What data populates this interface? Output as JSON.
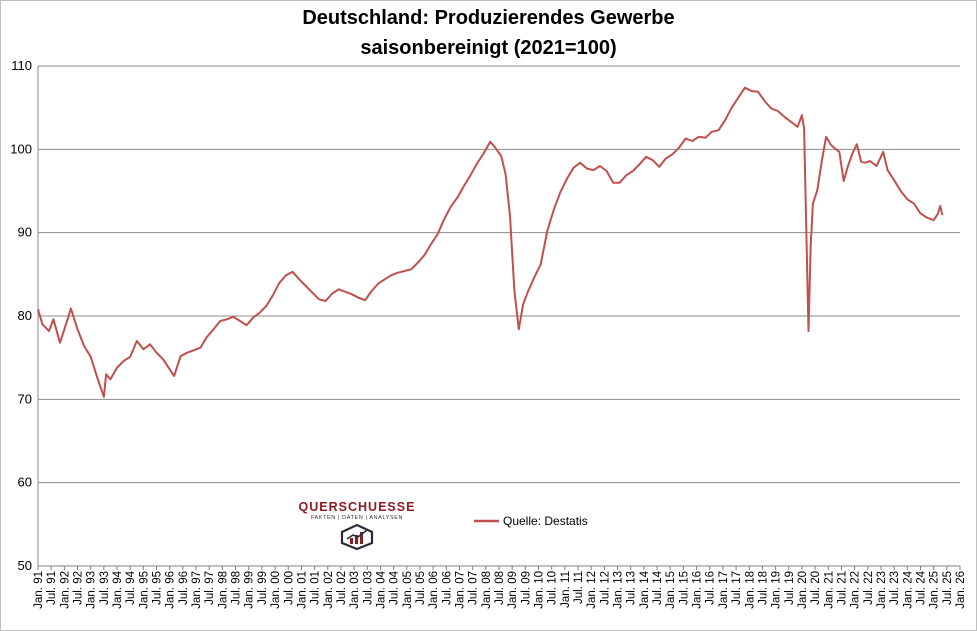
{
  "chart_data": {
    "type": "line",
    "title": "Deutschland: Produzierendes Gewerbe",
    "subtitle": "saisonbereinigt (2021=100)",
    "xlabel": "",
    "ylabel": "",
    "ylim": [
      50,
      110
    ],
    "yticks": [
      50,
      60,
      70,
      80,
      90,
      100,
      110
    ],
    "grid": true,
    "legend_position": "bottom-center",
    "x_tick_labels": [
      "Jan. 91",
      "Jul. 91",
      "Jan. 92",
      "Jul. 92",
      "Jan. 93",
      "Jul. 93",
      "Jan. 94",
      "Jul. 94",
      "Jan. 95",
      "Jul. 95",
      "Jan. 96",
      "Jul. 96",
      "Jan. 97",
      "Jul. 97",
      "Jan. 98",
      "Jul. 98",
      "Jan. 99",
      "Jul. 99",
      "Jan. 00",
      "Jul. 00",
      "Jan. 01",
      "Jul. 01",
      "Jan. 02",
      "Jul. 02",
      "Jan. 03",
      "Jul. 03",
      "Jan. 04",
      "Jul. 04",
      "Jan. 05",
      "Jul. 05",
      "Jan. 06",
      "Jul. 06",
      "Jan. 07",
      "Jul. 07",
      "Jan. 08",
      "Jul. 08",
      "Jan. 09",
      "Jul. 09",
      "Jan. 10",
      "Jul. 10",
      "Jan. 11",
      "Jul. 11",
      "Jan. 12",
      "Jul. 12",
      "Jan. 13",
      "Jul. 13",
      "Jan. 14",
      "Jul. 14",
      "Jan. 15",
      "Jul. 15",
      "Jan. 16",
      "Jul. 16",
      "Jan. 17",
      "Jul. 17",
      "Jan. 18",
      "Jul. 18",
      "Jan. 19",
      "Jul. 19",
      "Jan. 20",
      "Jul. 20",
      "Jan. 21",
      "Jul. 21",
      "Jan. 22",
      "Jul. 22",
      "Jan. 23",
      "Jul. 23",
      "Jan. 24",
      "Jul. 24",
      "Jan. 25",
      "Jul. 25",
      "Jan. 26"
    ],
    "series": [
      {
        "name": "Quelle: Destatis",
        "color": "#c0504d",
        "points": [
          [
            "1991-01",
            80.8
          ],
          [
            "1991-03",
            79.0
          ],
          [
            "1991-06",
            78.2
          ],
          [
            "1991-08",
            79.6
          ],
          [
            "1991-11",
            76.8
          ],
          [
            "1992-02",
            79.2
          ],
          [
            "1992-04",
            80.9
          ],
          [
            "1992-07",
            78.4
          ],
          [
            "1992-10",
            76.4
          ],
          [
            "1993-01",
            75.1
          ],
          [
            "1993-04",
            72.6
          ],
          [
            "1993-07",
            70.3
          ],
          [
            "1993-08",
            73.0
          ],
          [
            "1993-10",
            72.4
          ],
          [
            "1994-01",
            73.8
          ],
          [
            "1994-04",
            74.6
          ],
          [
            "1994-07",
            75.1
          ],
          [
            "1994-10",
            77.0
          ],
          [
            "1995-01",
            76.0
          ],
          [
            "1995-04",
            76.6
          ],
          [
            "1995-07",
            75.6
          ],
          [
            "1995-10",
            74.8
          ],
          [
            "1996-01",
            73.6
          ],
          [
            "1996-03",
            72.8
          ],
          [
            "1996-06",
            75.2
          ],
          [
            "1996-09",
            75.6
          ],
          [
            "1996-12",
            75.9
          ],
          [
            "1997-03",
            76.2
          ],
          [
            "1997-06",
            77.5
          ],
          [
            "1997-09",
            78.4
          ],
          [
            "1997-12",
            79.4
          ],
          [
            "1998-03",
            79.6
          ],
          [
            "1998-06",
            79.9
          ],
          [
            "1998-09",
            79.4
          ],
          [
            "1998-12",
            78.9
          ],
          [
            "1999-03",
            79.8
          ],
          [
            "1999-06",
            80.4
          ],
          [
            "1999-09",
            81.2
          ],
          [
            "1999-12",
            82.5
          ],
          [
            "2000-03",
            84.0
          ],
          [
            "2000-06",
            84.9
          ],
          [
            "2000-09",
            85.3
          ],
          [
            "2000-12",
            84.4
          ],
          [
            "2001-03",
            83.6
          ],
          [
            "2001-06",
            82.8
          ],
          [
            "2001-09",
            82.0
          ],
          [
            "2001-12",
            81.8
          ],
          [
            "2002-03",
            82.7
          ],
          [
            "2002-06",
            83.2
          ],
          [
            "2002-09",
            82.9
          ],
          [
            "2002-12",
            82.6
          ],
          [
            "2003-03",
            82.2
          ],
          [
            "2003-06",
            81.9
          ],
          [
            "2003-09",
            83.0
          ],
          [
            "2003-12",
            83.9
          ],
          [
            "2004-03",
            84.4
          ],
          [
            "2004-06",
            84.9
          ],
          [
            "2004-09",
            85.2
          ],
          [
            "2004-12",
            85.4
          ],
          [
            "2005-03",
            85.6
          ],
          [
            "2005-06",
            86.4
          ],
          [
            "2005-09",
            87.3
          ],
          [
            "2005-12",
            88.6
          ],
          [
            "2006-03",
            89.8
          ],
          [
            "2006-06",
            91.6
          ],
          [
            "2006-09",
            93.1
          ],
          [
            "2006-12",
            94.2
          ],
          [
            "2007-03",
            95.6
          ],
          [
            "2007-06",
            96.9
          ],
          [
            "2007-09",
            98.3
          ],
          [
            "2007-12",
            99.5
          ],
          [
            "2008-03",
            100.9
          ],
          [
            "2008-05",
            100.3
          ],
          [
            "2008-08",
            99.2
          ],
          [
            "2008-10",
            97.0
          ],
          [
            "2008-12",
            92.0
          ],
          [
            "2009-02",
            83.0
          ],
          [
            "2009-04",
            78.4
          ],
          [
            "2009-06",
            81.4
          ],
          [
            "2009-08",
            82.8
          ],
          [
            "2009-11",
            84.6
          ],
          [
            "2010-02",
            86.2
          ],
          [
            "2010-05",
            90.2
          ],
          [
            "2010-08",
            92.8
          ],
          [
            "2010-11",
            94.9
          ],
          [
            "2011-02",
            96.5
          ],
          [
            "2011-05",
            97.8
          ],
          [
            "2011-08",
            98.4
          ],
          [
            "2011-11",
            97.7
          ],
          [
            "2012-02",
            97.5
          ],
          [
            "2012-05",
            98.0
          ],
          [
            "2012-08",
            97.4
          ],
          [
            "2012-11",
            96.0
          ],
          [
            "2013-02",
            96.0
          ],
          [
            "2013-05",
            96.9
          ],
          [
            "2013-08",
            97.4
          ],
          [
            "2013-11",
            98.2
          ],
          [
            "2014-02",
            99.1
          ],
          [
            "2014-05",
            98.7
          ],
          [
            "2014-08",
            97.9
          ],
          [
            "2014-11",
            98.9
          ],
          [
            "2015-02",
            99.4
          ],
          [
            "2015-05",
            100.2
          ],
          [
            "2015-08",
            101.3
          ],
          [
            "2015-11",
            101.0
          ],
          [
            "2016-02",
            101.5
          ],
          [
            "2016-05",
            101.4
          ],
          [
            "2016-08",
            102.1
          ],
          [
            "2016-11",
            102.3
          ],
          [
            "2017-02",
            103.5
          ],
          [
            "2017-05",
            105.0
          ],
          [
            "2017-08",
            106.2
          ],
          [
            "2017-11",
            107.4
          ],
          [
            "2018-02",
            107.0
          ],
          [
            "2018-05",
            106.9
          ],
          [
            "2018-08",
            105.8
          ],
          [
            "2018-11",
            104.9
          ],
          [
            "2019-02",
            104.6
          ],
          [
            "2019-05",
            103.9
          ],
          [
            "2019-08",
            103.3
          ],
          [
            "2019-11",
            102.7
          ],
          [
            "2020-01",
            104.1
          ],
          [
            "2020-02",
            102.5
          ],
          [
            "2020-04",
            78.2
          ],
          [
            "2020-05",
            88.5
          ],
          [
            "2020-06",
            93.5
          ],
          [
            "2020-08",
            95.1
          ],
          [
            "2020-10",
            98.5
          ],
          [
            "2020-12",
            101.5
          ],
          [
            "2021-02",
            100.6
          ],
          [
            "2021-04",
            100.1
          ],
          [
            "2021-06",
            99.7
          ],
          [
            "2021-08",
            96.2
          ],
          [
            "2021-10",
            98.0
          ],
          [
            "2021-12",
            99.5
          ],
          [
            "2022-02",
            100.6
          ],
          [
            "2022-04",
            98.5
          ],
          [
            "2022-06",
            98.4
          ],
          [
            "2022-08",
            98.6
          ],
          [
            "2022-11",
            98.0
          ],
          [
            "2023-02",
            99.7
          ],
          [
            "2023-04",
            97.5
          ],
          [
            "2023-07",
            96.3
          ],
          [
            "2023-10",
            95.0
          ],
          [
            "2024-01",
            94.0
          ],
          [
            "2024-04",
            93.5
          ],
          [
            "2024-07",
            92.3
          ],
          [
            "2024-10",
            91.8
          ],
          [
            "2025-01",
            91.5
          ],
          [
            "2025-03",
            92.3
          ],
          [
            "2025-04",
            93.2
          ],
          [
            "2025-05",
            92.1
          ]
        ]
      }
    ]
  },
  "logo": {
    "name": "QUERSCHUESSE",
    "tagline": "FAKTEN | DATEN | ANALYSEN"
  }
}
